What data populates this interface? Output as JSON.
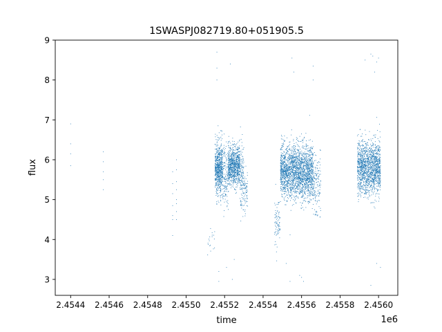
{
  "chart_data": {
    "type": "scatter",
    "title": "1SWASPJ082719.80+051905.5",
    "xlabel": "time",
    "ylabel": "flux",
    "x_offset_label": "1e6",
    "xlim": [
      2.45432,
      2.4561
    ],
    "ylim": [
      2.6,
      9.0
    ],
    "x_ticks": [
      2.4544,
      2.4546,
      2.4548,
      2.455,
      2.4552,
      2.4554,
      2.4556,
      2.4558,
      2.456
    ],
    "x_tick_labels": [
      "2.4544",
      "2.4546",
      "2.4548",
      "2.4550",
      "2.4552",
      "2.4554",
      "2.4556",
      "2.4558",
      "2.4560"
    ],
    "y_ticks": [
      3,
      4,
      5,
      6,
      7,
      8,
      9
    ],
    "y_tick_labels": [
      "3",
      "4",
      "5",
      "6",
      "7",
      "8",
      "9"
    ],
    "grid": false,
    "legend": "none",
    "point_color": "#1f77b4",
    "series": [
      {
        "x": [
          2.4544,
          2.4544,
          2.4544,
          2.4544,
          2.45457,
          2.45457,
          2.45457,
          2.45457,
          2.45457,
          2.45493,
          2.45493,
          2.45493,
          2.45493,
          2.45493,
          2.45493,
          2.45493,
          2.45495,
          2.45495,
          2.45495,
          2.45495,
          2.45495,
          2.45495,
          2.45495,
          2.45495
        ],
        "y": [
          6.9,
          6.4,
          6.15,
          5.85,
          6.2,
          5.95,
          5.7,
          5.5,
          5.25,
          5.7,
          5.4,
          5.15,
          4.85,
          4.6,
          4.5,
          4.1,
          6.0,
          5.75,
          5.45,
          5.25,
          5.0,
          4.9,
          4.7,
          4.5
        ]
      }
    ],
    "dense_clusters": [
      {
        "x_range": [
          2.45511,
          2.45515
        ],
        "y_mean": 4.0,
        "y_spread": 0.35,
        "points": 18
      },
      {
        "x_range": [
          2.45515,
          2.45519
        ],
        "y_mean": 5.75,
        "y_spread": 0.6,
        "points": 650
      },
      {
        "x_range": [
          2.45519,
          2.45522
        ],
        "y_mean": 5.6,
        "y_spread": 0.7,
        "points": 160
      },
      {
        "x_range": [
          2.45522,
          2.45528
        ],
        "y_mean": 5.85,
        "y_spread": 0.45,
        "points": 800
      },
      {
        "x_range": [
          2.45528,
          2.4553
        ],
        "y_mean": 5.55,
        "y_spread": 0.7,
        "points": 140
      },
      {
        "x_range": [
          2.4553,
          2.45532
        ],
        "y_mean": 5.2,
        "y_spread": 0.55,
        "points": 60
      },
      {
        "x_range": [
          2.45546,
          2.45549
        ],
        "y_mean": 4.4,
        "y_spread": 0.5,
        "points": 80
      },
      {
        "x_range": [
          2.45549,
          2.45566
        ],
        "y_mean": 5.7,
        "y_spread": 0.6,
        "points": 2200
      },
      {
        "x_range": [
          2.45566,
          2.4557
        ],
        "y_mean": 5.4,
        "y_spread": 0.7,
        "points": 150
      },
      {
        "x_range": [
          2.45589,
          2.45601
        ],
        "y_mean": 5.8,
        "y_spread": 0.6,
        "points": 1500
      }
    ],
    "outliers": {
      "x": [
        2.45516,
        2.45516,
        2.45516,
        2.45517,
        2.45517,
        2.45523,
        2.45524,
        2.45555,
        2.45556,
        2.4556,
        2.45566,
        2.45566,
        2.45593,
        2.45596,
        2.45597,
        2.45598,
        2.45599,
        2.456,
        2.45601,
        2.45554,
        2.45552,
        2.45559,
        2.45561,
        2.45525,
        2.45521,
        2.45596,
        2.45599
      ],
      "y": [
        8.7,
        8.3,
        8.0,
        3.2,
        2.95,
        8.4,
        3.0,
        8.55,
        8.2,
        3.05,
        8.35,
        8.0,
        8.5,
        8.65,
        8.6,
        8.2,
        8.45,
        8.55,
        3.3,
        2.95,
        3.4,
        3.1,
        2.95,
        3.5,
        3.3,
        2.85,
        3.4
      ]
    }
  }
}
